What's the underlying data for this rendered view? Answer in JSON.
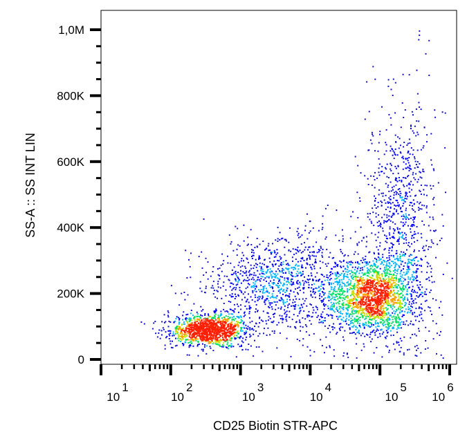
{
  "chart_data": {
    "type": "scatter",
    "style": "density dot plot",
    "xlabel": "CD25 Biotin STR-APC",
    "ylabel": "SS-A :: SS INT LIN",
    "xscale": "log",
    "xlim": [
      10,
      1000000
    ],
    "ylim": [
      0,
      1000000
    ],
    "x_ticks": [
      {
        "base": "10",
        "exp": "1",
        "value": 10
      },
      {
        "base": "10",
        "exp": "2",
        "value": 100
      },
      {
        "base": "10",
        "exp": "3",
        "value": 1000
      },
      {
        "base": "10",
        "exp": "4",
        "value": 10000
      },
      {
        "base": "10",
        "exp": "5",
        "value": 100000
      },
      {
        "base": "10",
        "exp": "6",
        "value": 1000000
      }
    ],
    "y_ticks": [
      {
        "label": "0",
        "value": 0
      },
      {
        "label": "200K",
        "value": 200000
      },
      {
        "label": "400K",
        "value": 400000
      },
      {
        "label": "600K",
        "value": 600000
      },
      {
        "label": "800K",
        "value": 800000
      },
      {
        "label": "1,0M",
        "value": 1000000
      }
    ],
    "populations": [
      {
        "x_center": 350,
        "x_spread_decades": 0.28,
        "y_center": 90000,
        "y_spread": 22000,
        "count": 1300
      },
      {
        "x_center": 80000,
        "x_spread_decades": 0.33,
        "y_center": 195000,
        "y_spread": 55000,
        "count": 1900
      },
      {
        "x_center": 4000,
        "x_spread_decades": 0.55,
        "y_center": 230000,
        "y_spread": 70000,
        "count": 1100
      },
      {
        "x_center": 200000,
        "x_spread_decades": 0.25,
        "y_center": 450000,
        "y_spread": 160000,
        "count": 700
      }
    ],
    "density_colors": [
      "#1010c8",
      "#0000ff",
      "#00b4ff",
      "#00e060",
      "#c8e000",
      "#ffa000",
      "#ff2000"
    ],
    "grid": false,
    "legend": "none"
  }
}
